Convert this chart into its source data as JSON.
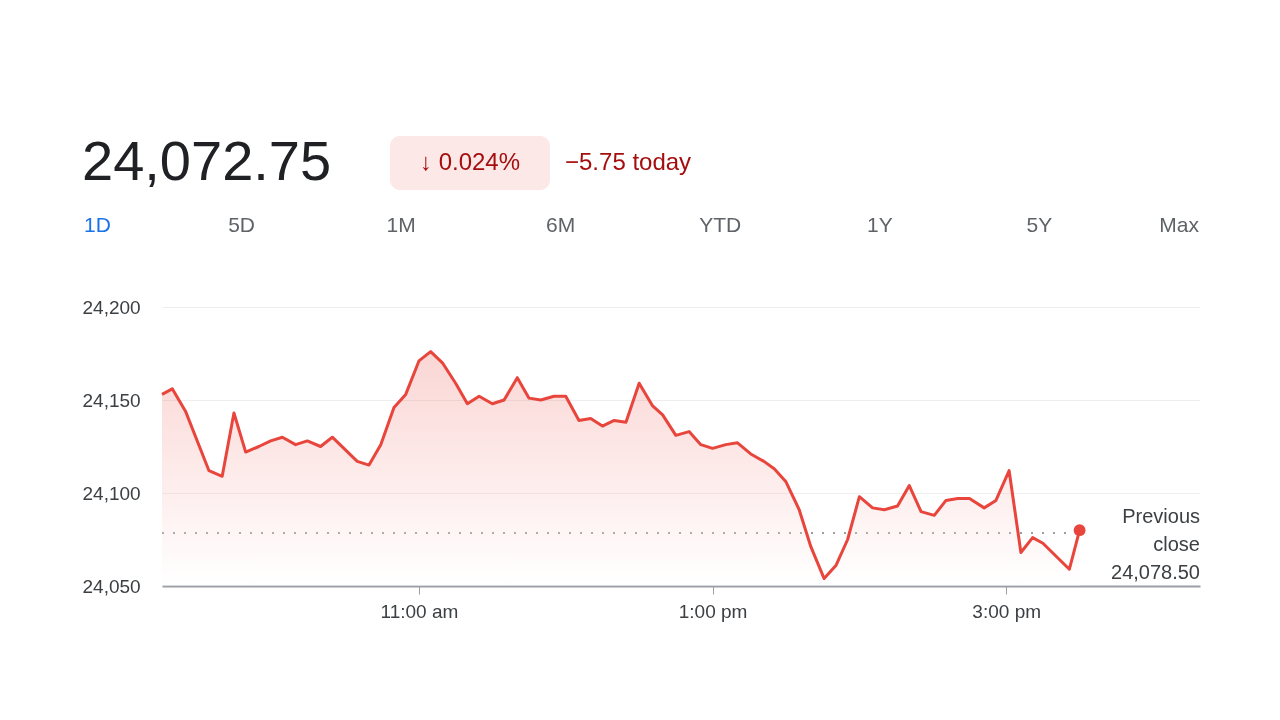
{
  "chart_data": {
    "type": "area",
    "title": "24,072.75",
    "annotations": [
      "↓ 0.024%",
      "−5.75 today",
      "1D",
      "5D",
      "1M",
      "6M",
      "YTD",
      "1Y",
      "5Y",
      "Max"
    ],
    "x": [
      9.25,
      9.32,
      9.41,
      9.57,
      9.66,
      9.74,
      9.82,
      9.91,
      9.99,
      10.07,
      10.16,
      10.24,
      10.33,
      10.41,
      10.58,
      10.66,
      10.74,
      10.83,
      10.91,
      11.0,
      11.08,
      11.16,
      11.25,
      11.33,
      11.41,
      11.5,
      11.58,
      11.67,
      11.75,
      11.83,
      11.92,
      12.0,
      12.09,
      12.17,
      12.25,
      12.33,
      12.41,
      12.5,
      12.59,
      12.66,
      12.75,
      12.84,
      12.92,
      13.0,
      13.09,
      13.17,
      13.26,
      13.35,
      13.42,
      13.5,
      13.59,
      13.67,
      13.76,
      13.84,
      13.92,
      14.0,
      14.09,
      14.17,
      14.26,
      14.34,
      14.42,
      14.51,
      14.59,
      14.67,
      14.75,
      14.85,
      14.93,
      15.02,
      15.1,
      15.18,
      15.25,
      15.43,
      15.5
    ],
    "series": [
      {
        "color": "#e8453c",
        "values": [
          24153,
          24156,
          24144,
          24112,
          24109,
          24143,
          24122,
          24125,
          24128,
          24130,
          24126,
          24128,
          24125,
          24130,
          24117,
          24115,
          24126,
          24146,
          24153,
          24171,
          24176,
          24170,
          24159,
          24148,
          24152,
          24148,
          24150,
          24162,
          24151,
          24150,
          24152,
          24152,
          24139,
          24140,
          24136,
          24139,
          24138,
          24159,
          24147,
          24142,
          24131,
          24133,
          24126,
          24124,
          24126,
          24127,
          24121,
          24117,
          24113,
          24106,
          24091,
          24071,
          24054,
          24061,
          24075,
          24098,
          24092,
          24091,
          24093,
          24104,
          24090,
          24088,
          24096,
          24097,
          24097,
          24092,
          24096,
          24112,
          24068,
          24076,
          24073,
          24059,
          24080
        ]
      }
    ],
    "xlim": [
      9.25,
      16.32
    ],
    "xticks": [
      {
        "value": 11,
        "label": "11:00 am"
      },
      {
        "value": 13,
        "label": "1:00 pm"
      },
      {
        "value": 15,
        "label": "3:00 pm"
      }
    ],
    "ylim": [
      24050,
      24200
    ],
    "yticks": [
      {
        "value": 24050,
        "label": "24,050"
      },
      {
        "value": 24100,
        "label": "24,100"
      },
      {
        "value": 24150,
        "label": "24,150"
      },
      {
        "value": 24200,
        "label": "24,200"
      }
    ],
    "grid": "y",
    "ref_lines": [
      {
        "axis": "y",
        "value": 24078.5,
        "label": "Previous close 24,078.50",
        "color": "#9e9e9e",
        "line_style": "dotted"
      }
    ]
  }
}
